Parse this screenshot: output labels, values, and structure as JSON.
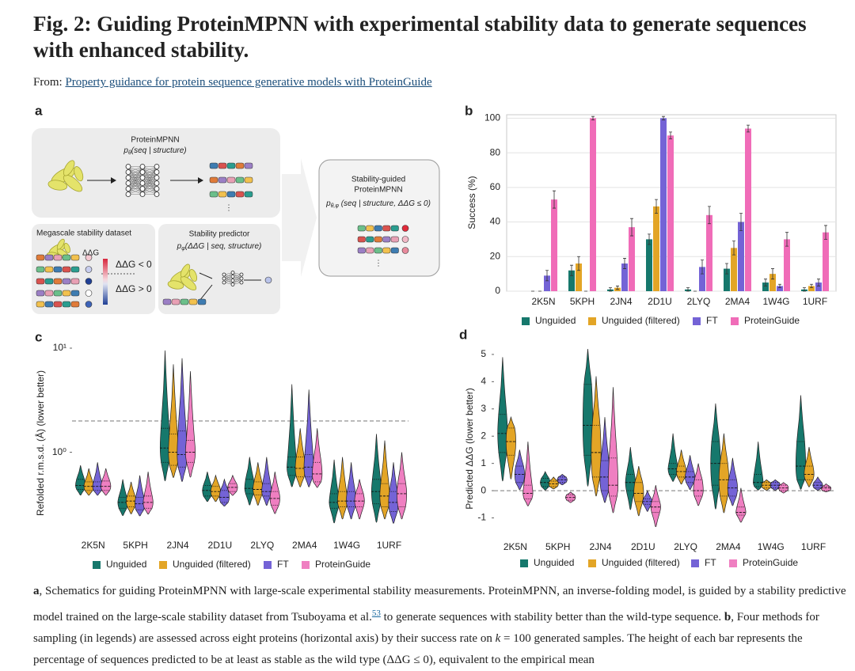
{
  "header": {
    "title": "Fig. 2: Guiding ProteinMPNN with experimental stability data to generate sequences with enhanced stability.",
    "from_label": "From:",
    "source_link": "Property guidance for protein sequence generative models with ProteinGuide"
  },
  "panel_a": {
    "label": "a",
    "mpnn_title": "ProteinMPNN",
    "mpnn_formula": {
      "base": "p",
      "subscript": "θ",
      "args": "(seq | structure)"
    },
    "guided_title_1": "Stability-guided",
    "guided_title_2": "ProteinMPNN",
    "guided_formula": {
      "base": "p",
      "subscript": "θ,φ",
      "args": " (seq | structure, ΔΔG ≤ 0)"
    },
    "dataset_title": "Megascale stability dataset",
    "ddg_label": "ΔΔG",
    "ddg_negative": "ΔΔG < 0",
    "ddg_positive": "ΔΔG > 0",
    "predictor_title": "Stability predictor",
    "predictor_formula": {
      "base": "p",
      "subscript": "φ",
      "args": "(ΔΔG | seq, structure)"
    },
    "ellipsis": "⋮"
  },
  "chart_data": [
    {
      "type": "bar",
      "panel": "b",
      "y_label": "Success (%)",
      "categories": [
        "2K5N",
        "5KPH",
        "2JN4",
        "2D1U",
        "2LYQ",
        "2MA4",
        "1W4G",
        "1URF"
      ],
      "ylim": [
        0,
        102
      ],
      "yticks": [
        0,
        20,
        40,
        60,
        80,
        100
      ],
      "grid": true,
      "frame": true,
      "series": [
        {
          "name": "Unguided",
          "color": "#16786c",
          "values": [
            0,
            12,
            1,
            30,
            1,
            13,
            5,
            1
          ],
          "errors": [
            0,
            3,
            1,
            3,
            1,
            3,
            2,
            1
          ]
        },
        {
          "name": "Unguided (filtered)",
          "color": "#e3a526",
          "values": [
            0,
            16,
            2,
            49,
            0,
            25,
            10,
            3
          ],
          "errors": [
            0,
            4,
            1,
            4,
            0,
            4,
            3,
            1
          ]
        },
        {
          "name": "FT",
          "color": "#7463d6",
          "values": [
            9,
            0,
            16,
            100,
            14,
            40,
            3,
            5
          ],
          "errors": [
            3,
            0,
            3,
            1,
            4,
            5,
            1,
            2
          ]
        },
        {
          "name": "ProteinGuide",
          "color": "#f06cb8",
          "values": [
            53,
            100,
            37,
            90,
            44,
            94,
            30,
            34
          ],
          "errors": [
            5,
            1,
            5,
            2,
            5,
            2,
            4,
            4
          ]
        }
      ]
    },
    {
      "type": "violin",
      "panel": "c",
      "y_label": "Refolded r.m.s.d. (Å) (lower better)",
      "categories": [
        "2K5N",
        "5KPH",
        "2JN4",
        "2D1U",
        "2LYQ",
        "2MA4",
        "1W4G",
        "1URF"
      ],
      "log_scale": true,
      "ylim": [
        0.15,
        10
      ],
      "yticks": [
        {
          "value": 1,
          "label": "10⁰"
        },
        {
          "value": 10,
          "label": "10¹"
        }
      ],
      "reference_line": 2,
      "series": [
        {
          "name": "Unguided",
          "color": "#16786c",
          "min": [
            0.38,
            0.24,
            0.5,
            0.33,
            0.3,
            0.45,
            0.2,
            0.2
          ],
          "q1": [
            0.44,
            0.29,
            0.8,
            0.38,
            0.4,
            0.6,
            0.29,
            0.32
          ],
          "median": [
            0.48,
            0.33,
            1.1,
            0.43,
            0.45,
            0.72,
            0.33,
            0.42
          ],
          "q3": [
            0.55,
            0.37,
            1.7,
            0.48,
            0.55,
            0.9,
            0.4,
            0.55
          ],
          "max": [
            0.75,
            0.55,
            9.5,
            0.65,
            0.9,
            4.5,
            0.85,
            1.5
          ]
        },
        {
          "name": "Unguided (filtered)",
          "color": "#e3a526",
          "min": [
            0.38,
            0.25,
            0.55,
            0.33,
            0.3,
            0.45,
            0.22,
            0.22
          ],
          "q1": [
            0.43,
            0.3,
            0.75,
            0.38,
            0.39,
            0.58,
            0.3,
            0.3
          ],
          "median": [
            0.47,
            0.34,
            1.0,
            0.42,
            0.44,
            0.7,
            0.34,
            0.38
          ],
          "q3": [
            0.52,
            0.38,
            1.5,
            0.47,
            0.52,
            0.9,
            0.42,
            0.5
          ],
          "max": [
            0.7,
            0.52,
            7,
            0.6,
            0.8,
            1.7,
            0.9,
            1.3
          ]
        },
        {
          "name": "FT",
          "color": "#7463d6",
          "min": [
            0.38,
            0.24,
            0.5,
            0.3,
            0.3,
            0.45,
            0.22,
            0.2
          ],
          "q1": [
            0.43,
            0.28,
            0.72,
            0.33,
            0.38,
            0.58,
            0.3,
            0.27
          ],
          "median": [
            0.47,
            0.32,
            0.95,
            0.37,
            0.42,
            0.72,
            0.34,
            0.33
          ],
          "q3": [
            0.52,
            0.37,
            1.6,
            0.43,
            0.5,
            0.95,
            0.42,
            0.42
          ],
          "max": [
            0.8,
            0.6,
            8,
            0.55,
            0.9,
            4,
            0.8,
            0.8
          ]
        },
        {
          "name": "ProteinGuide",
          "color": "#ef7fc1",
          "min": [
            0.38,
            0.25,
            0.55,
            0.38,
            0.25,
            0.45,
            0.22,
            0.22
          ],
          "q1": [
            0.43,
            0.29,
            0.8,
            0.42,
            0.31,
            0.52,
            0.3,
            0.3
          ],
          "median": [
            0.47,
            0.33,
            1.0,
            0.46,
            0.36,
            0.62,
            0.34,
            0.4
          ],
          "q3": [
            0.53,
            0.38,
            1.3,
            0.5,
            0.42,
            0.8,
            0.4,
            0.5
          ],
          "max": [
            0.7,
            0.65,
            6,
            0.6,
            0.65,
            1.7,
            0.55,
            1.0
          ]
        }
      ]
    },
    {
      "type": "violin",
      "panel": "d",
      "y_label": "Predicted ΔΔG (lower better)",
      "categories": [
        "2K5N",
        "5KPH",
        "2JN4",
        "2D1U",
        "2LYQ",
        "2MA4",
        "1W4G",
        "1URF"
      ],
      "ylim": [
        -1.74,
        5.23
      ],
      "yticks": [
        -1,
        0,
        1,
        2,
        3,
        4,
        5
      ],
      "reference_line": 0,
      "series": [
        {
          "name": "Unguided",
          "color": "#16786c",
          "min": [
            0.2,
            0,
            0,
            -0.8,
            0.3,
            -0.8,
            0,
            0
          ],
          "q1": [
            1.4,
            0.15,
            1.3,
            0,
            0.6,
            0.2,
            0.15,
            0.4
          ],
          "median": [
            2.1,
            0.3,
            2.4,
            0.3,
            0.8,
            1.0,
            0.3,
            0.9
          ],
          "q3": [
            2.8,
            0.45,
            3.9,
            0.6,
            1.0,
            1.8,
            0.6,
            1.8
          ],
          "max": [
            4.9,
            0.7,
            5.2,
            1.6,
            2.1,
            3.2,
            1.8,
            3.5
          ]
        },
        {
          "name": "Unguided (filtered)",
          "color": "#e3a526",
          "min": [
            0.3,
            0.05,
            -0.3,
            -1,
            0.2,
            -0.9,
            0,
            0.1
          ],
          "q1": [
            1.3,
            0.15,
            0.5,
            -0.4,
            0.5,
            -0.2,
            0.1,
            0.4
          ],
          "median": [
            1.8,
            0.25,
            1.4,
            -0.1,
            0.7,
            0.4,
            0.2,
            0.6
          ],
          "q3": [
            2.3,
            0.35,
            2.4,
            0.3,
            0.9,
            1.0,
            0.3,
            0.9
          ],
          "max": [
            2.7,
            0.5,
            4.2,
            0.9,
            1.5,
            2.1,
            0.4,
            1.6
          ]
        },
        {
          "name": "FT",
          "color": "#7463d6",
          "min": [
            0,
            0.2,
            -0.5,
            -0.8,
            0,
            -0.6,
            0,
            0
          ],
          "q1": [
            0.3,
            0.3,
            0,
            -0.5,
            0.3,
            -0.2,
            0.1,
            0.1
          ],
          "median": [
            0.6,
            0.4,
            0.5,
            -0.4,
            0.5,
            0.1,
            0.2,
            0.2
          ],
          "q3": [
            0.9,
            0.5,
            1.1,
            -0.3,
            0.7,
            0.4,
            0.3,
            0.3
          ],
          "max": [
            1.5,
            0.6,
            2.7,
            0,
            1.3,
            1.2,
            0.4,
            0.5
          ]
        },
        {
          "name": "ProteinGuide",
          "color": "#ef7fc1",
          "min": [
            -0.6,
            -0.45,
            -0.9,
            -1.4,
            -0.6,
            -1.2,
            -0.1,
            -0.05
          ],
          "q1": [
            -0.3,
            -0.35,
            -0.2,
            -0.8,
            -0.2,
            -0.9,
            0,
            0
          ],
          "median": [
            -0.1,
            -0.25,
            0.2,
            -0.6,
            0,
            -0.8,
            0.1,
            0.1
          ],
          "q3": [
            0.2,
            -0.15,
            1.2,
            -0.4,
            0.4,
            -0.6,
            0.2,
            0.15
          ],
          "max": [
            1.8,
            -0.05,
            3.8,
            0.2,
            1.0,
            0.1,
            0.3,
            0.25
          ]
        }
      ]
    }
  ],
  "caption": {
    "a_label": "a",
    "a_text_1": ", Schematics for guiding ProteinMPNN with large-scale experimental stability measurements. ProteinMPNN, an inverse-folding model, is guided by a stability predictive model trained on the large-scale stability dataset from Tsuboyama et al.",
    "a_ref": "53",
    "a_text_2": " to generate sequences with stability better than the wild-type sequence. ",
    "b_label": "b",
    "b_text_1": ", Four methods for sampling (in legends) are assessed across eight proteins (horizontal axis) by their success rate on ",
    "b_k": "k",
    "b_text_2": " = 100 generated samples. The height of each bar represents the percentage of sequences predicted to be at least as stable as the wild type (ΔΔG ≤ 0), equivalent to the empirical mean"
  }
}
